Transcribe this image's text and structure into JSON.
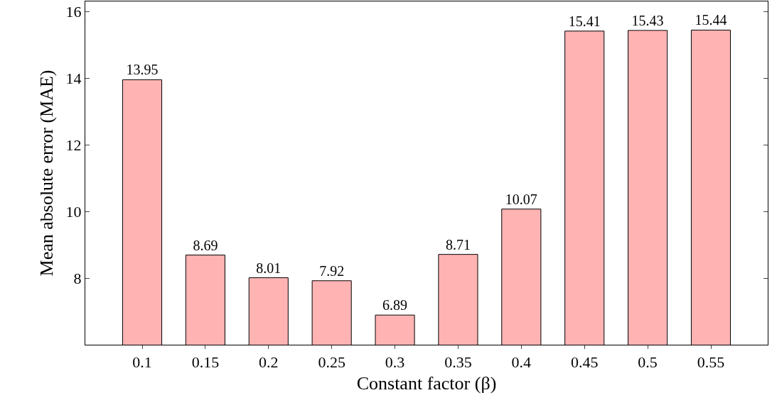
{
  "chart_data": {
    "type": "bar",
    "xlabel": "Constant factor (β)",
    "ylabel": "Mean absolute error (MAE)",
    "categories": [
      "0.1",
      "0.15",
      "0.2",
      "0.25",
      "0.3",
      "0.35",
      "0.4",
      "0.45",
      "0.5",
      "0.55"
    ],
    "values": [
      13.95,
      8.69,
      8.01,
      7.92,
      6.89,
      8.71,
      10.07,
      15.41,
      15.43,
      15.44
    ],
    "color": "#ffb3b3",
    "ylim": [
      6,
      16.3
    ],
    "yticks": [
      8,
      10,
      12,
      14,
      16
    ],
    "data_labels": true
  }
}
